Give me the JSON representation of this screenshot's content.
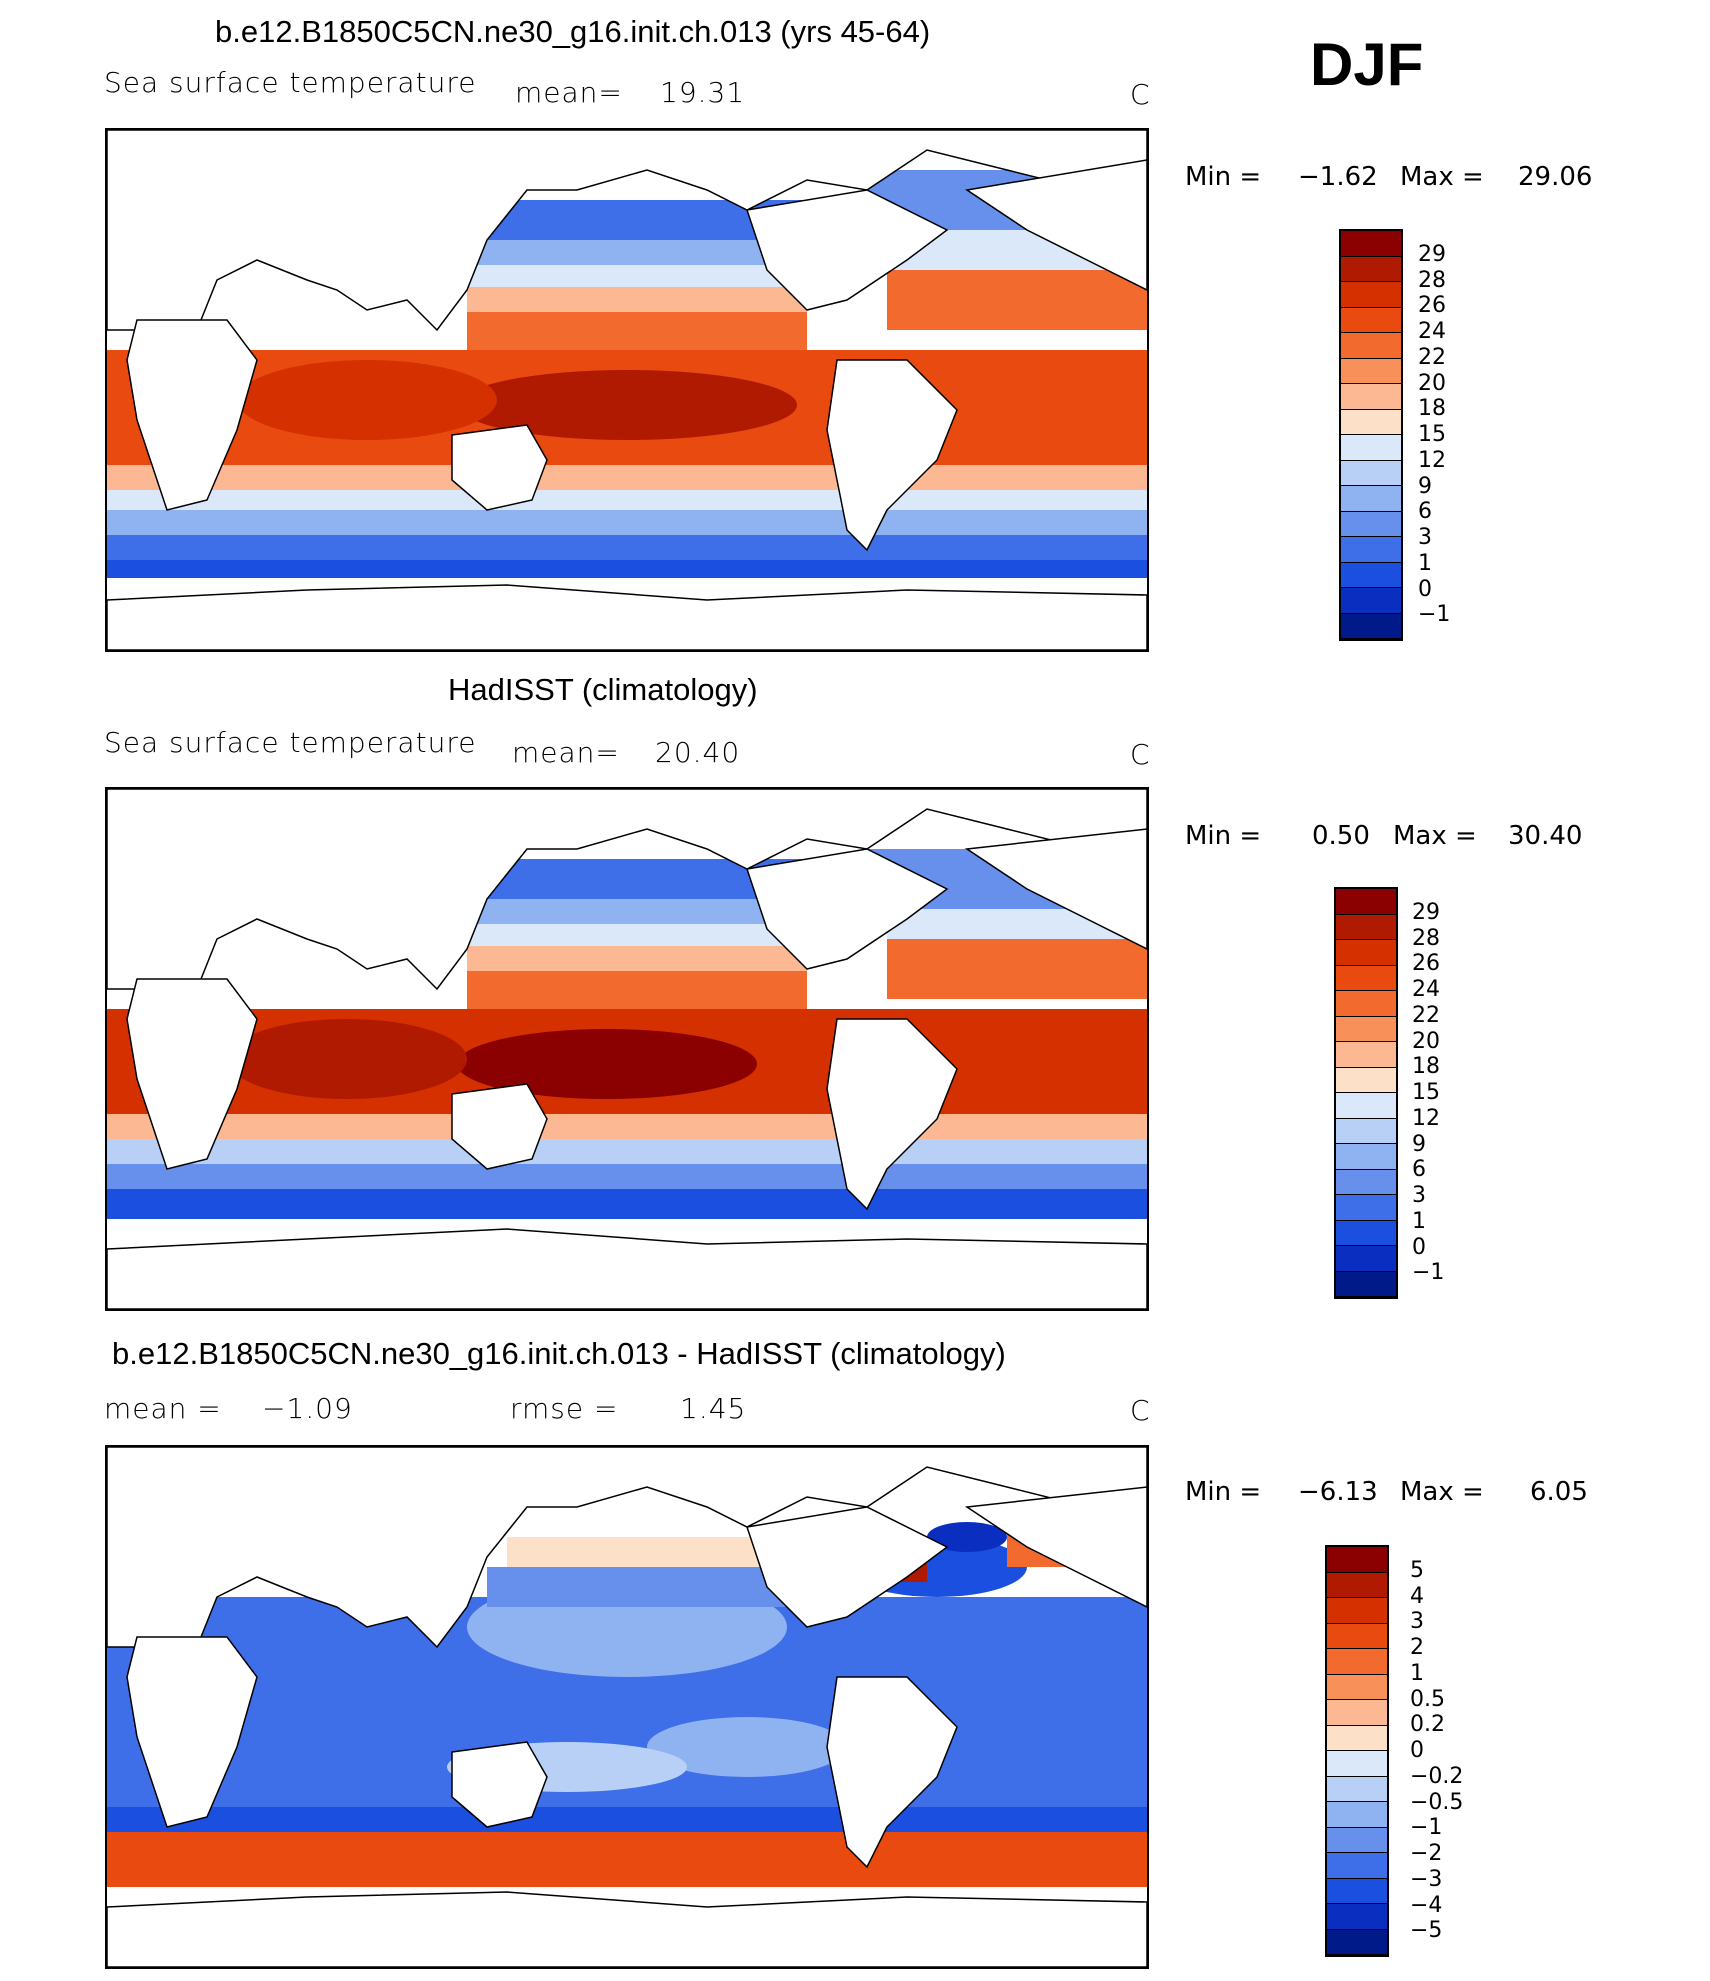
{
  "season": "DJF",
  "panels": [
    {
      "title": "b.e12.B1850C5CN.ne30_g16.init.ch.013 (yrs 45-64)",
      "left_label": "Sea surface temperature",
      "stat_label": "mean=",
      "stat_value": "19.31",
      "unit": "C",
      "min_label": "Min =",
      "min_value": "−1.62",
      "max_label": "Max =",
      "max_value": "29.06",
      "levels": [
        "29",
        "28",
        "26",
        "24",
        "22",
        "20",
        "18",
        "15",
        "12",
        "9",
        "6",
        "3",
        "1",
        "0",
        "−1"
      ],
      "colors": [
        "#8b0000",
        "#b01a00",
        "#d43000",
        "#e84a10",
        "#f26a2e",
        "#f8905a",
        "#fbb892",
        "#fde0c8",
        "#dbe8fa",
        "#b8d0f6",
        "#8fb2f0",
        "#6690ec",
        "#3e6fe8",
        "#1a4fe0",
        "#0a2fc0",
        "#001a8a"
      ]
    },
    {
      "title": "HadISST (climatology)",
      "left_label": "Sea surface temperature",
      "stat_label": "mean=",
      "stat_value": "20.40",
      "unit": "C",
      "min_label": "Min =",
      "min_value": "0.50",
      "max_label": "Max =",
      "max_value": "30.40",
      "levels": [
        "29",
        "28",
        "26",
        "24",
        "22",
        "20",
        "18",
        "15",
        "12",
        "9",
        "6",
        "3",
        "1",
        "0",
        "−1"
      ],
      "colors": [
        "#8b0000",
        "#b01a00",
        "#d43000",
        "#e84a10",
        "#f26a2e",
        "#f8905a",
        "#fbb892",
        "#fde0c8",
        "#dbe8fa",
        "#b8d0f6",
        "#8fb2f0",
        "#6690ec",
        "#3e6fe8",
        "#1a4fe0",
        "#0a2fc0",
        "#001a8a"
      ]
    },
    {
      "title": "b.e12.B1850C5CN.ne30_g16.init.ch.013 - HadISST (climatology)",
      "left_label": "mean =",
      "left_value": "−1.09",
      "stat_label": "rmse =",
      "stat_value": "1.45",
      "unit": "C",
      "min_label": "Min =",
      "min_value": "−6.13",
      "max_label": "Max =",
      "max_value": "6.05",
      "levels": [
        "5",
        "4",
        "3",
        "2",
        "1",
        "0.5",
        "0.2",
        "0",
        "−0.2",
        "−0.5",
        "−1",
        "−2",
        "−3",
        "−4",
        "−5"
      ],
      "colors": [
        "#8b0000",
        "#b01a00",
        "#d43000",
        "#e84a10",
        "#f26a2e",
        "#f8905a",
        "#fbb892",
        "#fde0c8",
        "#dbe8fa",
        "#b8d0f6",
        "#8fb2f0",
        "#6690ec",
        "#3e6fe8",
        "#1a4fe0",
        "#0a2fc0",
        "#001a8a"
      ]
    }
  ]
}
